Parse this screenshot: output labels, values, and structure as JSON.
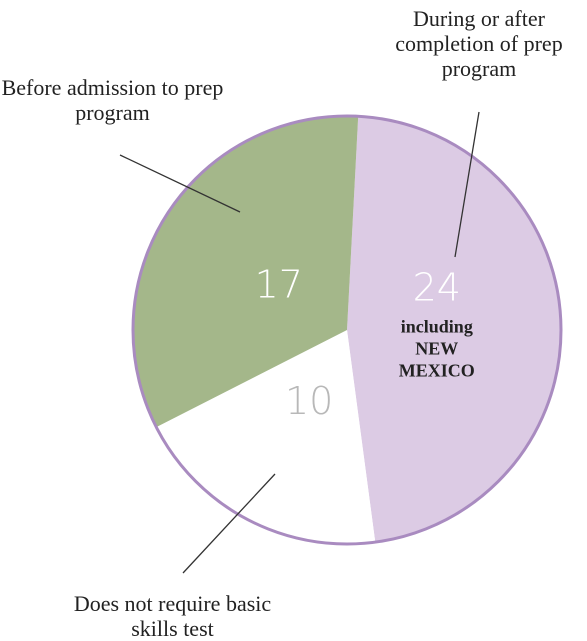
{
  "chart_data": {
    "type": "pie",
    "title": "",
    "slices": [
      {
        "label": "During or after completion of prep program",
        "value": 24,
        "color": "#dccbe4",
        "value_color": "#ffffff",
        "note": [
          "including",
          "NEW",
          "MEXICO"
        ]
      },
      {
        "label": "Does not require basic skills test",
        "value": 10,
        "color": "#ffffff",
        "value_color": "#b8b8b8"
      },
      {
        "label": "Before admission to prep program",
        "value": 17,
        "color": "#a4b78a",
        "value_color": "#ffffff"
      }
    ],
    "outline_color": "#a98bc0",
    "leader_color": "#333333"
  }
}
